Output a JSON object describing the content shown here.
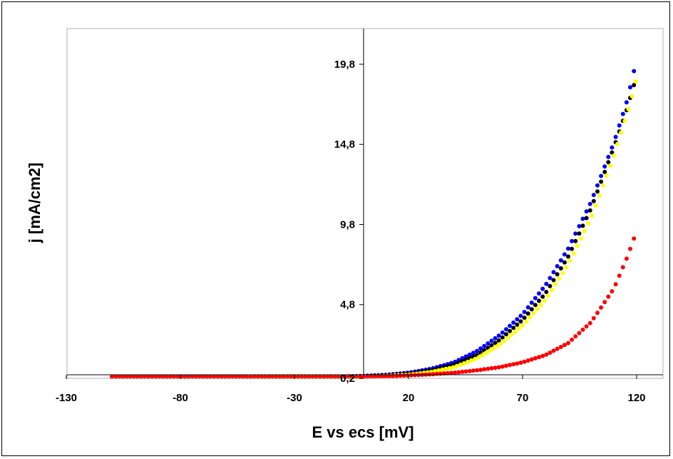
{
  "chart_data": {
    "type": "scatter",
    "title": "",
    "xlabel": "E vs ecs [mV]",
    "ylabel": "j [mA/cm2]",
    "xlim": [
      -130,
      120
    ],
    "ylim": [
      0.2,
      20.8
    ],
    "x_ticks": [
      "-130",
      "-80",
      "-30",
      "20",
      "70",
      "120"
    ],
    "x_tick_values": [
      -130,
      -80,
      -30,
      20,
      70,
      120
    ],
    "y_ticks": [
      "0,2",
      "4,8",
      "9,8",
      "14,8",
      "19,8"
    ],
    "y_tick_values": [
      0.2,
      4.8,
      9.8,
      14.8,
      19.8
    ],
    "grid": false,
    "legend": "none",
    "series": [
      {
        "color": "#0000FF",
        "points": [
          [
            -110,
            0.15
          ],
          [
            -80,
            0.18
          ],
          [
            -50,
            0.22
          ],
          [
            -20,
            0.28
          ],
          [
            0,
            0.35
          ],
          [
            10,
            0.42
          ],
          [
            20,
            0.55
          ],
          [
            30,
            0.8
          ],
          [
            40,
            1.2
          ],
          [
            50,
            1.9
          ],
          [
            60,
            2.9
          ],
          [
            70,
            4.2
          ],
          [
            80,
            6.0
          ],
          [
            90,
            8.3
          ],
          [
            100,
            11.2
          ],
          [
            110,
            14.9
          ],
          [
            116,
            17.6
          ],
          [
            119,
            19.5
          ],
          [
            120,
            20.8
          ]
        ]
      },
      {
        "color": "#000000",
        "points": [
          [
            -110,
            0.15
          ],
          [
            -80,
            0.17
          ],
          [
            -50,
            0.2
          ],
          [
            -20,
            0.25
          ],
          [
            0,
            0.32
          ],
          [
            10,
            0.38
          ],
          [
            20,
            0.48
          ],
          [
            30,
            0.7
          ],
          [
            40,
            1.05
          ],
          [
            50,
            1.65
          ],
          [
            60,
            2.6
          ],
          [
            70,
            3.85
          ],
          [
            80,
            5.5
          ],
          [
            90,
            7.8
          ],
          [
            100,
            10.8
          ],
          [
            110,
            14.6
          ],
          [
            116,
            17.1
          ],
          [
            119,
            18.6
          ],
          [
            120,
            19.3
          ]
        ]
      },
      {
        "color": "#FFFF00",
        "points": [
          [
            -50,
            0.2
          ],
          [
            -20,
            0.24
          ],
          [
            0,
            0.3
          ],
          [
            10,
            0.35
          ],
          [
            20,
            0.43
          ],
          [
            30,
            0.6
          ],
          [
            40,
            0.9
          ],
          [
            50,
            1.45
          ],
          [
            60,
            2.3
          ],
          [
            70,
            3.5
          ],
          [
            80,
            5.1
          ],
          [
            90,
            7.3
          ],
          [
            100,
            10.2
          ],
          [
            110,
            14.1
          ],
          [
            116,
            16.8
          ],
          [
            119,
            18.3
          ],
          [
            120,
            19.0
          ]
        ]
      },
      {
        "color": "#FF0000",
        "points": [
          [
            -110,
            0.1
          ],
          [
            -80,
            0.14
          ],
          [
            -50,
            0.17
          ],
          [
            -20,
            0.22
          ],
          [
            0,
            0.28
          ],
          [
            10,
            0.32
          ],
          [
            20,
            0.38
          ],
          [
            30,
            0.45
          ],
          [
            40,
            0.55
          ],
          [
            50,
            0.7
          ],
          [
            60,
            0.9
          ],
          [
            70,
            1.2
          ],
          [
            80,
            1.65
          ],
          [
            90,
            2.4
          ],
          [
            100,
            3.7
          ],
          [
            110,
            5.8
          ],
          [
            116,
            7.8
          ],
          [
            119,
            9.0
          ],
          [
            120,
            9.4
          ]
        ]
      }
    ]
  }
}
